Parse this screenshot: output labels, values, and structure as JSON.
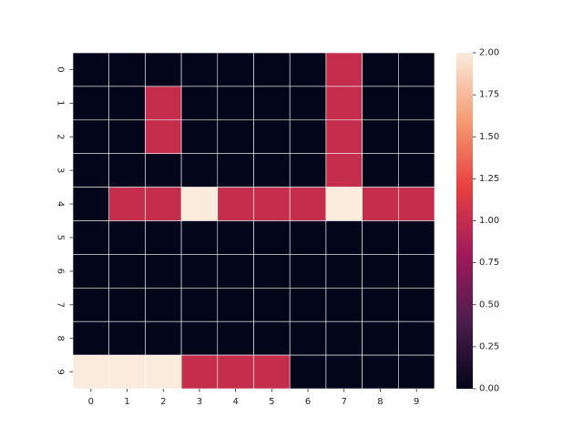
{
  "chart_data": {
    "type": "heatmap",
    "title": "",
    "xlabel": "",
    "ylabel": "",
    "x_categories": [
      "0",
      "1",
      "2",
      "3",
      "4",
      "5",
      "6",
      "7",
      "8",
      "9"
    ],
    "y_categories": [
      "0",
      "1",
      "2",
      "3",
      "4",
      "5",
      "6",
      "7",
      "8",
      "9"
    ],
    "values": [
      [
        0,
        0,
        0,
        0,
        0,
        0,
        0,
        1,
        0,
        0
      ],
      [
        0,
        0,
        1,
        0,
        0,
        0,
        0,
        1,
        0,
        0
      ],
      [
        0,
        0,
        1,
        0,
        0,
        0,
        0,
        1,
        0,
        0
      ],
      [
        0,
        0,
        0,
        0,
        0,
        0,
        0,
        1,
        0,
        0
      ],
      [
        0,
        1,
        1,
        2,
        1,
        1,
        1,
        2,
        1,
        1
      ],
      [
        0,
        0,
        0,
        0,
        0,
        0,
        0,
        0,
        0,
        0
      ],
      [
        0,
        0,
        0,
        0,
        0,
        0,
        0,
        0,
        0,
        0
      ],
      [
        0,
        0,
        0,
        0,
        0,
        0,
        0,
        0,
        0,
        0
      ],
      [
        0,
        0,
        0,
        0,
        0,
        0,
        0,
        0,
        0,
        0
      ],
      [
        2,
        2,
        2,
        1,
        1,
        1,
        0,
        0,
        0,
        0
      ]
    ],
    "colorbar": {
      "min": 0,
      "max": 2,
      "ticks": [
        "0.00",
        "0.25",
        "0.50",
        "0.75",
        "1.00",
        "1.25",
        "1.50",
        "1.75",
        "2.00"
      ]
    },
    "colormap": "rocket",
    "colormap_stops": [
      "#03051a",
      "#4c1d4b",
      "#a11a5b",
      "#e83f3f",
      "#f69c73",
      "#faebdd"
    ],
    "cell_border_color": "#ffffff"
  }
}
